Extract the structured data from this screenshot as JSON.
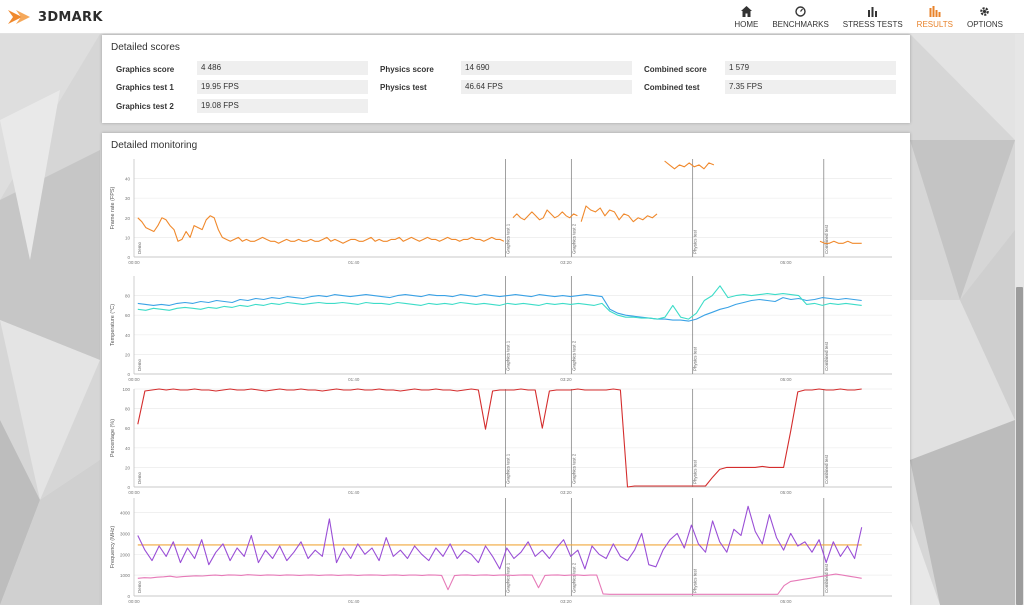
{
  "app": {
    "brand": "3DMARK",
    "brand_color": "#e8832b"
  },
  "nav": [
    {
      "label": "HOME",
      "icon": "home-icon"
    },
    {
      "label": "BENCHMARKS",
      "icon": "speedometer-icon"
    },
    {
      "label": "STRESS TESTS",
      "icon": "bar-chart-icon"
    },
    {
      "label": "RESULTS",
      "icon": "results-bars-icon",
      "active": true
    },
    {
      "label": "OPTIONS",
      "icon": "gear-icon"
    }
  ],
  "detailed_scores": {
    "title": "Detailed scores",
    "graphics_score": {
      "label": "Graphics score",
      "value": "4 486"
    },
    "graphics_test_1": {
      "label": "Graphics test 1",
      "value": "19.95 FPS"
    },
    "graphics_test_2": {
      "label": "Graphics test 2",
      "value": "19.08 FPS"
    },
    "physics_score": {
      "label": "Physics score",
      "value": "14 690"
    },
    "physics_test": {
      "label": "Physics test",
      "value": "46.64 FPS"
    },
    "combined_score": {
      "label": "Combined score",
      "value": "1 579"
    },
    "combined_test": {
      "label": "Combined test",
      "value": "7.35 FPS"
    }
  },
  "detailed_monitoring": {
    "title": "Detailed monitoring"
  },
  "chart_data": [
    {
      "type": "line",
      "ylabel": "Frame rate (FPS)",
      "ylim": [
        0,
        50
      ],
      "yticks": [
        "0",
        "10",
        "20",
        "30",
        "40"
      ],
      "xticks": [
        "00:00",
        "01:40",
        "03:20",
        "05:00"
      ],
      "phase_labels": [
        "Demo",
        "Graphics test 1",
        "Graphics test 2",
        "Physics test",
        "Combined test"
      ],
      "series": [
        {
          "color": "#f0892c",
          "segments": [
            {
              "x0": 0.005,
              "x1": 0.488,
              "values": [
                20,
                18,
                15,
                14,
                13,
                16,
                20,
                19,
                16,
                14,
                8,
                9,
                13,
                10,
                16,
                15,
                14,
                19,
                21,
                20,
                14,
                10,
                9,
                8,
                9,
                10,
                8,
                9,
                8,
                8,
                9,
                10,
                9,
                8,
                8,
                7,
                8,
                9,
                8,
                8,
                9,
                8,
                8,
                9,
                8,
                8,
                9,
                10,
                8,
                9,
                8,
                7,
                8,
                9,
                9,
                8,
                8,
                9,
                10,
                8,
                9,
                8,
                8,
                9,
                9,
                10,
                8,
                9,
                10,
                9,
                8,
                9,
                10,
                9,
                9,
                8,
                9,
                10,
                9,
                9,
                8,
                9,
                9,
                10,
                9,
                9,
                8,
                9,
                10,
                9,
                9,
                8
              ]
            },
            {
              "x0": 0.5,
              "x1": 0.585,
              "values": [
                20,
                22,
                20,
                19,
                21,
                23,
                21,
                19,
                20,
                24,
                22,
                20,
                21,
                23,
                21,
                20,
                22,
                21
              ]
            },
            {
              "x0": 0.59,
              "x1": 0.69,
              "values": [
                18,
                26,
                24,
                23,
                25,
                21,
                24,
                23,
                19,
                22,
                21,
                18,
                20,
                19,
                21,
                20,
                22
              ]
            },
            {
              "x0": 0.7,
              "x1": 0.765,
              "values": [
                49,
                47,
                45,
                47,
                46,
                48,
                46,
                47,
                45,
                48,
                47
              ]
            },
            {
              "x0": 0.905,
              "x1": 0.96,
              "values": [
                8,
                7,
                7,
                8,
                7,
                7,
                8,
                7,
                7,
                7
              ]
            }
          ]
        }
      ]
    },
    {
      "type": "line",
      "ylabel": "Temperature (°C)",
      "ylim": [
        0,
        100
      ],
      "yticks": [
        "0",
        "20",
        "40",
        "60",
        "80"
      ],
      "xticks": [
        "00:00",
        "01:40",
        "03:20",
        "05:00"
      ],
      "phase_labels": [
        "Demo",
        "Graphics test 1",
        "Graphics test 2",
        "Physics test",
        "Combined test"
      ],
      "series": [
        {
          "name_hint": "gpu",
          "color": "#3aa2e6",
          "segments": [
            {
              "x0": 0.005,
              "x1": 0.96,
              "values": [
                72,
                71,
                70,
                71,
                70,
                72,
                73,
                72,
                74,
                73,
                75,
                74,
                73,
                76,
                75,
                77,
                76,
                78,
                77,
                79,
                78,
                77,
                79,
                80,
                79,
                81,
                80,
                79,
                80,
                81,
                80,
                79,
                78,
                80,
                81,
                80,
                79,
                81,
                80,
                80,
                79,
                81,
                80,
                79,
                81,
                80,
                79,
                80,
                81,
                80,
                79,
                81,
                80,
                79,
                80,
                79,
                80,
                81,
                80,
                79,
                66,
                62,
                60,
                59,
                58,
                57,
                56,
                56,
                55,
                55,
                54,
                56,
                60,
                63,
                66,
                68,
                71,
                73,
                75,
                76,
                75,
                74,
                78,
                76,
                77,
                75,
                76,
                78,
                77,
                76,
                77,
                76,
                75
              ]
            }
          ]
        },
        {
          "name_hint": "cpu",
          "color": "#3ddcc8",
          "segments": [
            {
              "x0": 0.005,
              "x1": 0.96,
              "values": [
                66,
                65,
                67,
                66,
                65,
                67,
                68,
                67,
                66,
                68,
                67,
                69,
                68,
                70,
                69,
                71,
                70,
                72,
                71,
                73,
                72,
                71,
                72,
                73,
                72,
                72,
                73,
                72,
                71,
                73,
                72,
                72,
                71,
                73,
                72,
                71,
                70,
                72,
                71,
                72,
                71,
                73,
                72,
                71,
                72,
                71,
                70,
                72,
                71,
                72,
                71,
                70,
                72,
                71,
                72,
                71,
                72,
                71,
                70,
                72,
                64,
                60,
                58,
                58,
                57,
                57,
                56,
                58,
                70,
                58,
                56,
                62,
                75,
                80,
                90,
                78,
                80,
                81,
                80,
                81,
                82,
                81,
                82,
                81,
                80,
                71,
                72,
                70,
                72,
                71,
                72,
                71,
                70
              ]
            }
          ]
        }
      ]
    },
    {
      "type": "line",
      "ylabel": "Percentage (%)",
      "ylim": [
        0,
        100
      ],
      "yticks": [
        "0",
        "20",
        "40",
        "60",
        "80",
        "100"
      ],
      "xticks": [
        "00:00",
        "01:40",
        "03:20",
        "05:00"
      ],
      "phase_labels": [
        "Demo",
        "Graphics test 1",
        "Graphics test 2",
        "Physics test",
        "Combined test"
      ],
      "series": [
        {
          "color": "#d42d2d",
          "segments": [
            {
              "x0": 0.005,
              "x1": 0.96,
              "values": [
                64,
                98,
                99,
                100,
                99,
                100,
                99,
                99,
                100,
                99,
                99,
                98,
                99,
                100,
                99,
                99,
                100,
                99,
                98,
                99,
                100,
                99,
                99,
                100,
                99,
                99,
                98,
                99,
                100,
                99,
                99,
                100,
                99,
                99,
                100,
                99,
                99,
                98,
                99,
                100,
                99,
                99,
                100,
                99,
                99,
                98,
                99,
                100,
                99,
                59,
                98,
                99,
                99,
                99,
                100,
                99,
                99,
                60,
                98,
                99,
                99,
                99,
                100,
                99,
                99,
                99,
                99,
                100,
                99,
                0,
                1,
                1,
                1,
                1,
                1,
                1,
                1,
                1,
                1,
                1,
                1,
                10,
                18,
                20,
                20,
                20,
                20,
                20,
                21,
                20,
                20,
                20,
                57,
                97,
                99,
                99,
                100,
                99,
                99,
                100,
                99,
                99,
                100
              ]
            }
          ]
        }
      ]
    },
    {
      "type": "line",
      "ylabel": "Frequency (MHz)",
      "ylim": [
        0,
        4700
      ],
      "yticks": [
        "0",
        "1000",
        "2000",
        "3000",
        "4000"
      ],
      "xticks": [
        "00:00",
        "01:40",
        "03:20",
        "05:00"
      ],
      "phase_labels": [
        "Demo",
        "Graphics test 1",
        "Graphics test 2",
        "Physics test",
        "Combined test"
      ],
      "series": [
        {
          "name_hint": "reference",
          "color": "#f0a83c",
          "segments": [
            {
              "x0": 0.005,
              "x1": 0.96,
              "values": [
                2450,
                2450
              ]
            }
          ]
        },
        {
          "name_hint": "gpu-memory",
          "color": "#e67ab8",
          "segments": [
            {
              "x0": 0.005,
              "x1": 0.96,
              "values": [
                850,
                880,
                870,
                900,
                920,
                950,
                900,
                930,
                950,
                970,
                960,
                990,
                1000,
                980,
                1010,
                1000,
                990,
                1020,
                1000,
                990,
                1010,
                1000,
                990,
                1010,
                1000,
                990,
                1000,
                1010,
                990,
                1000,
                1010,
                990,
                1000,
                1010,
                990,
                1000,
                1010,
                1000,
                990,
                1000,
                1010,
                990,
                1000,
                1000,
                990,
                1010,
                1000,
                990,
                300,
                980,
                1000,
                1010,
                990,
                1000,
                1010,
                990,
                1000,
                1010,
                990,
                1000,
                1010,
                1000,
                400,
                990,
                1000,
                1010,
                990,
                1000,
                1010,
                990,
                1000,
                1000,
                100,
                80,
                80,
                80,
                80,
                80,
                80,
                80,
                80,
                80,
                80,
                80,
                80,
                80,
                80,
                80,
                80,
                80,
                80,
                80,
                80,
                80,
                80,
                80,
                80,
                80,
                80,
                80,
                500,
                700,
                750,
                800,
                850,
                900,
                950,
                1000,
                1050,
                1000,
                950,
                900,
                850
              ]
            }
          ]
        },
        {
          "name_hint": "gpu-core",
          "color": "#9a4fd6",
          "segments": [
            {
              "x0": 0.005,
              "x1": 0.96,
              "values": [
                2900,
                2200,
                1700,
                2400,
                1900,
                2600,
                1600,
                2300,
                1800,
                2700,
                1500,
                2100,
                2500,
                1700,
                2300,
                1900,
                2900,
                1600,
                2200,
                1800,
                2400,
                1700,
                2100,
                2600,
                1800,
                2200,
                1900,
                3700,
                1600,
                2300,
                1800,
                2500,
                2000,
                2300,
                1700,
                2800,
                1900,
                2200,
                1800,
                2400,
                2000,
                1700,
                2300,
                1900,
                2500,
                1800,
                2200,
                2000,
                1600,
                2400,
                1900,
                1300,
                2300,
                1800,
                2100,
                2600,
                1900,
                2200,
                1800,
                2300,
                2700,
                1900,
                2200,
                1300,
                2400,
                2000,
                1800,
                2500,
                1900,
                1700,
                2200,
                3000,
                1500,
                1400,
                2200,
                2700,
                3000,
                2300,
                3400,
                2500,
                2100,
                3600,
                2600,
                2100,
                3200,
                2900,
                4300,
                3100,
                2500,
                3900,
                2800,
                2200,
                3000,
                2400,
                2600,
                2100,
                2700,
                1600,
                2600,
                1900,
                2400,
                1800,
                3300
              ]
            }
          ]
        }
      ]
    }
  ]
}
